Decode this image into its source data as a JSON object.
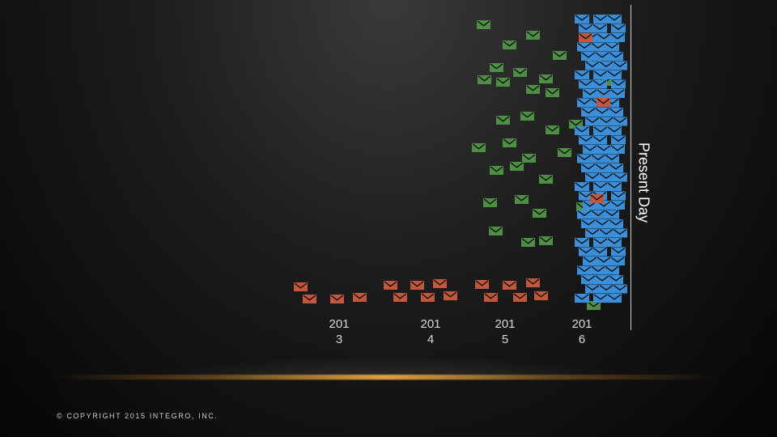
{
  "slide": {
    "years": [
      "201\n3",
      "201\n4",
      "201\n5",
      "201\n6"
    ],
    "present_label": "Present Day",
    "copyright": "© COPYRIGHT 2015 INTEGRO, INC."
  },
  "colors": {
    "red": "#c1573c",
    "green": "#4f8f45",
    "blue": "#3b8fd8",
    "accent_line": "#e0a040"
  },
  "icons": {
    "envelope": "envelope-icon"
  }
}
